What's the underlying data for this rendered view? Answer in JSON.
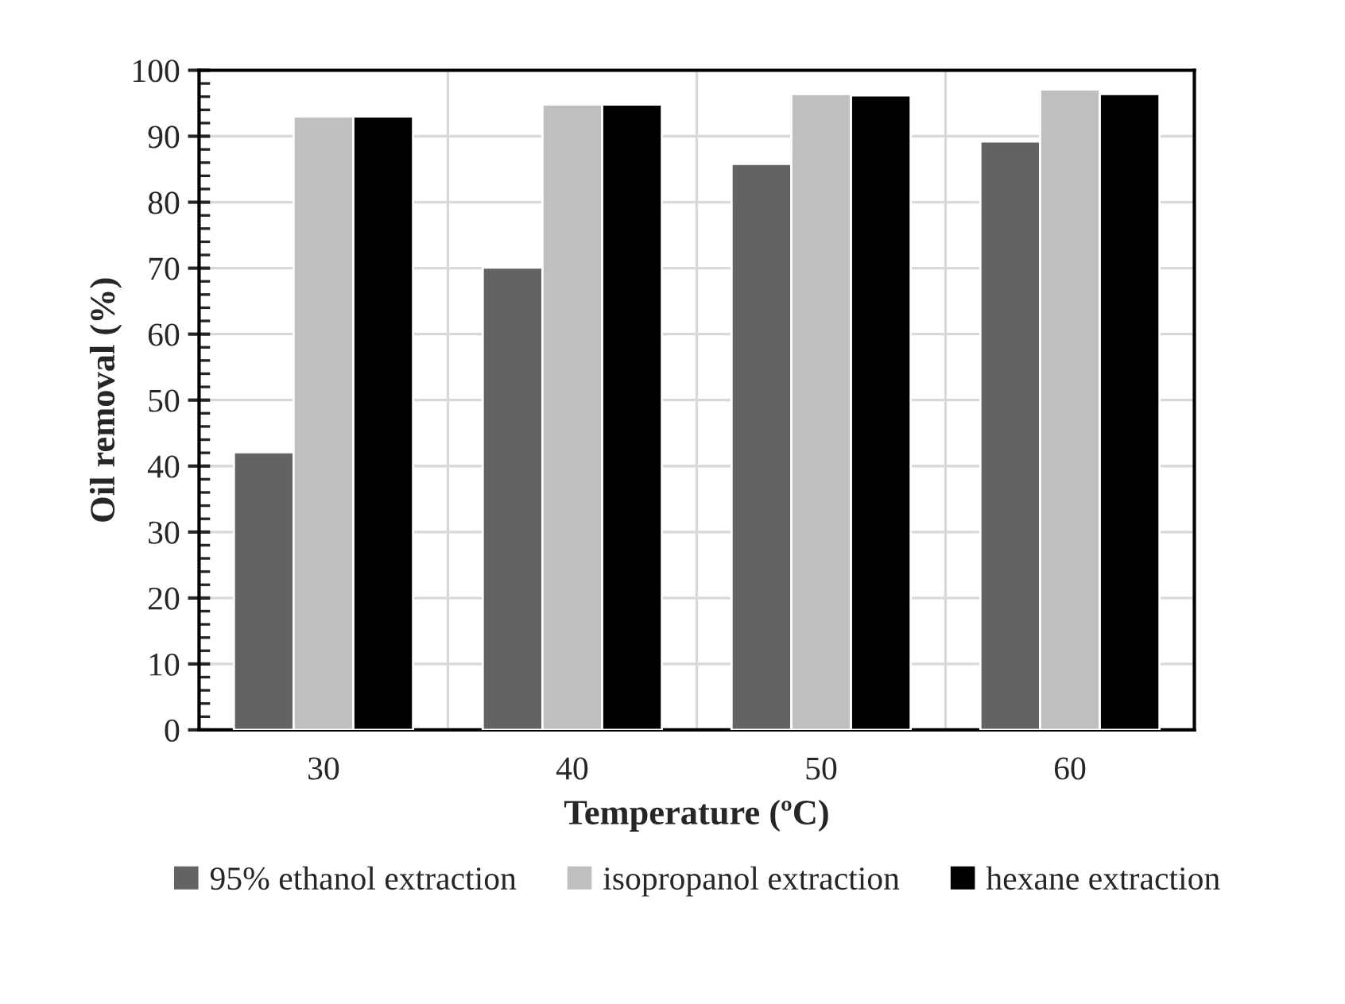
{
  "chart_data": {
    "type": "bar",
    "xlabel": "Temperature (ºC)",
    "ylabel": "Oil removal (%)",
    "categories": [
      "30",
      "40",
      "50",
      "60"
    ],
    "series": [
      {
        "name": "95% ethanol extraction",
        "color": "#636363",
        "values": [
          42.1,
          70.1,
          85.8,
          89.2
        ]
      },
      {
        "name": "isopropanol extraction",
        "color": "#bfbfbf",
        "values": [
          93.0,
          94.8,
          96.4,
          97.1
        ]
      },
      {
        "name": "hexane extraction",
        "color": "#000000",
        "values": [
          93.0,
          94.8,
          96.2,
          96.4
        ]
      }
    ],
    "ylim": [
      0,
      100
    ],
    "yticks": [
      0,
      10,
      20,
      30,
      40,
      50,
      60,
      70,
      80,
      90,
      100
    ],
    "grid": true,
    "legend": "bottom"
  }
}
